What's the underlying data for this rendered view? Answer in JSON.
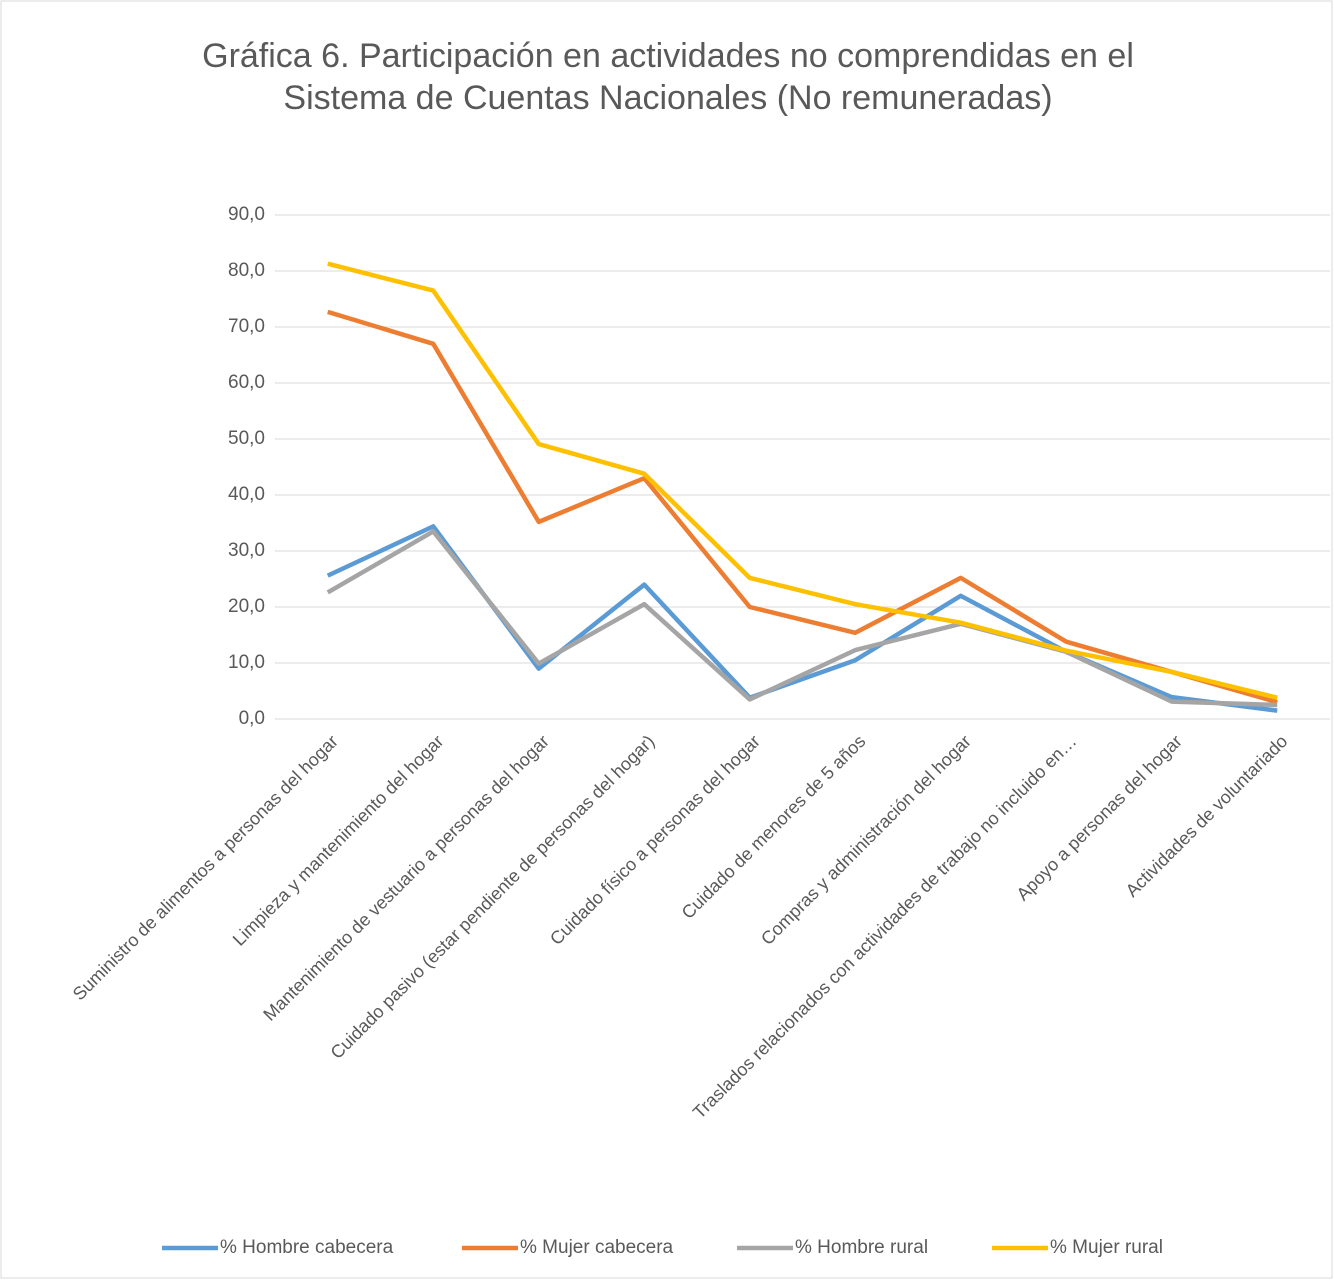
{
  "chart_data": {
    "type": "line",
    "title": "Gráfica 6. Participación en actividades no comprendidas en el",
    "subtitle": "Sistema de Cuentas Nacionales (No remuneradas)",
    "categories": [
      "Suministro de alimentos a personas del hogar",
      "Limpieza y mantenimiento del hogar",
      "Mantenimiento de vestuario a personas del hogar",
      "Cuidado pasivo (estar pendiente de personas del hogar)",
      "Cuidado físico a personas del hogar",
      "Cuidado de menores de 5 años",
      "Compras y administración del hogar",
      "Traslados relacionados con actividades de trabajo no incluido en…",
      "Apoyo a personas del hogar",
      "Actividades de voluntariado"
    ],
    "series": [
      {
        "name": "% Hombre cabecera",
        "color": "#5b9bd5",
        "values": [
          25.6,
          34.4,
          9.0,
          24.0,
          3.8,
          10.5,
          22.0,
          12.0,
          3.9,
          1.5
        ]
      },
      {
        "name": "% Mujer cabecera",
        "color": "#ed7d31",
        "values": [
          72.7,
          67.0,
          35.2,
          43.0,
          20.0,
          15.4,
          25.2,
          13.8,
          8.4,
          3.0
        ]
      },
      {
        "name": "% Hombre rural",
        "color": "#a5a5a5",
        "values": [
          22.6,
          33.5,
          9.9,
          20.5,
          3.5,
          12.3,
          17.0,
          12.0,
          3.1,
          2.5
        ]
      },
      {
        "name": "% Mujer rural",
        "color": "#ffc000",
        "values": [
          81.3,
          76.5,
          49.1,
          43.8,
          25.2,
          20.5,
          17.2,
          12.2,
          8.4,
          3.8
        ]
      }
    ],
    "ylim": [
      0,
      90
    ],
    "yticks": [
      {
        "value": 0,
        "label": "0,0"
      },
      {
        "value": 10,
        "label": "10,0"
      },
      {
        "value": 20,
        "label": "20,0"
      },
      {
        "value": 30,
        "label": "30,0"
      },
      {
        "value": 40,
        "label": "40,0"
      },
      {
        "value": 50,
        "label": "50,0"
      },
      {
        "value": 60,
        "label": "60,0"
      },
      {
        "value": 70,
        "label": "70,0"
      },
      {
        "value": 80,
        "label": "80,0"
      },
      {
        "value": 90,
        "label": "90,0"
      }
    ],
    "grid": true,
    "legend": "bottom"
  }
}
